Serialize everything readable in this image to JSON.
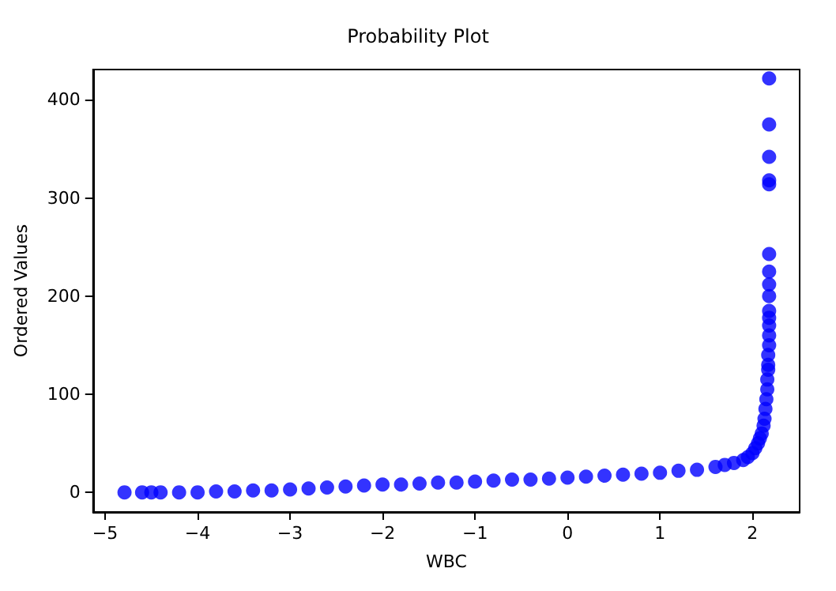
{
  "chart_data": {
    "type": "scatter",
    "title": "Probability Plot",
    "xlabel": "WBC",
    "ylabel": "Ordered Values",
    "grid": false,
    "marker": "circle",
    "xlim": [
      -5.13,
      2.51
    ],
    "ylim": [
      -20,
      431
    ],
    "xticks": [
      -5,
      -4,
      -3,
      -2,
      -1,
      0,
      1,
      2
    ],
    "yticks": [
      0,
      100,
      200,
      300,
      400
    ],
    "series": [
      {
        "color": "#0000ff",
        "x": [
          -4.79,
          -4.6,
          -4.5,
          -4.4,
          -4.2,
          -4.0,
          -3.8,
          -3.6,
          -3.4,
          -3.2,
          -3.0,
          -2.8,
          -2.6,
          -2.4,
          -2.2,
          -2.0,
          -1.8,
          -1.6,
          -1.4,
          -1.2,
          -1.0,
          -0.8,
          -0.6,
          -0.4,
          -0.2,
          0.0,
          0.2,
          0.4,
          0.6,
          0.8,
          1.0,
          1.2,
          1.4,
          1.6,
          1.7,
          1.8,
          1.9,
          1.95,
          2.0,
          2.03,
          2.06,
          2.08,
          2.1,
          2.12,
          2.13,
          2.14,
          2.15,
          2.16,
          2.16,
          2.17,
          2.17,
          2.17,
          2.18,
          2.18,
          2.18,
          2.18,
          2.18,
          2.18,
          2.18,
          2.18,
          2.18,
          2.18,
          2.18,
          2.18
        ],
        "values": [
          0,
          0,
          0,
          0,
          0,
          0,
          1,
          1,
          2,
          2,
          3,
          4,
          5,
          6,
          7,
          8,
          8,
          9,
          10,
          10,
          11,
          12,
          13,
          13,
          14,
          15,
          16,
          17,
          18,
          19,
          20,
          22,
          23,
          26,
          28,
          30,
          33,
          36,
          40,
          45,
          50,
          55,
          60,
          68,
          75,
          85,
          95,
          105,
          115,
          125,
          130,
          140,
          150,
          160,
          170,
          178,
          185,
          200,
          212,
          225,
          243,
          314,
          318,
          342
        ]
      },
      {
        "color": "#0000ff",
        "x": [
          2.18,
          2.18
        ],
        "values": [
          375,
          422
        ]
      }
    ]
  }
}
